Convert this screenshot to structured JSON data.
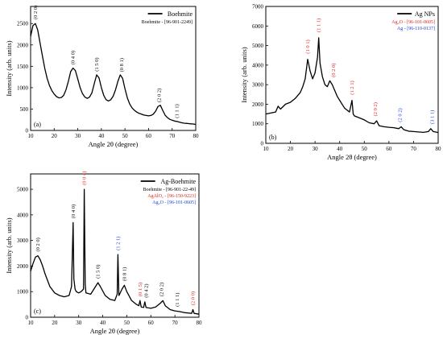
{
  "chart_data": [
    {
      "type": "line",
      "panel_label": "(a)",
      "xlabel": "Angle 2θ (degree)",
      "ylabel": "Intensity (arb. units)",
      "xlim": [
        10,
        80
      ],
      "ylim": [
        0,
        2900
      ],
      "xticks": [
        10,
        20,
        30,
        40,
        50,
        60,
        70,
        80
      ],
      "yticks": [
        0,
        500,
        1000,
        1500,
        2000,
        2500
      ],
      "legend_position": "top-right",
      "series": [
        {
          "name": "Boehmite",
          "color": "#000000",
          "x": [
            10,
            11,
            12,
            13,
            14,
            15,
            16,
            17,
            18,
            19,
            20,
            21,
            22,
            23,
            24,
            25,
            26,
            27,
            28,
            29,
            30,
            31,
            32,
            33,
            34,
            35,
            36,
            37,
            38,
            39,
            40,
            41,
            42,
            43,
            44,
            45,
            46,
            47,
            48,
            49,
            50,
            51,
            52,
            53,
            54,
            55,
            56,
            57,
            58,
            59,
            60,
            61,
            62,
            63,
            64,
            65,
            66,
            67,
            68,
            69,
            70,
            71,
            72,
            73,
            74,
            75,
            76,
            77,
            78,
            79,
            80
          ],
          "y": [
            2200,
            2450,
            2500,
            2350,
            2050,
            1750,
            1450,
            1220,
            1050,
            930,
            850,
            790,
            760,
            770,
            820,
            950,
            1150,
            1380,
            1460,
            1400,
            1200,
            1000,
            860,
            780,
            750,
            780,
            880,
            1100,
            1300,
            1230,
            1000,
            820,
            720,
            690,
            720,
            800,
            950,
            1150,
            1300,
            1220,
            980,
            760,
            620,
            530,
            470,
            430,
            400,
            380,
            360,
            350,
            340,
            350,
            380,
            450,
            560,
            590,
            470,
            360,
            300,
            260,
            240,
            220,
            210,
            195,
            180,
            170,
            165,
            160,
            155,
            150,
            140
          ]
        }
      ],
      "reference_entries": [
        {
          "text": "Boehmite - [96-901-2249]",
          "color": "#000000"
        }
      ],
      "peak_annotations": [
        {
          "text": "(0 2 0)",
          "x": 12,
          "y": 2560,
          "color": "#000000"
        },
        {
          "text": "(0 4 0)",
          "x": 28,
          "y": 1500,
          "color": "#000000"
        },
        {
          "text": "(1 5 0)",
          "x": 38,
          "y": 1340,
          "color": "#000000"
        },
        {
          "text": "(0 8 1)",
          "x": 48.5,
          "y": 1330,
          "color": "#000000"
        },
        {
          "text": "(2 0 2)",
          "x": 64.5,
          "y": 620,
          "color": "#000000"
        },
        {
          "text": "(1 1 1)",
          "x": 72,
          "y": 250,
          "color": "#000000"
        }
      ]
    },
    {
      "type": "line",
      "panel_label": "(b)",
      "xlabel": "Angle 2θ (degree)",
      "ylabel": "Intensity (arb. units)",
      "xlim": [
        10,
        80
      ],
      "ylim": [
        0,
        7000
      ],
      "xticks": [
        10,
        20,
        30,
        40,
        50,
        60,
        70,
        80
      ],
      "yticks": [
        0,
        1000,
        2000,
        3000,
        4000,
        5000,
        6000,
        7000
      ],
      "legend_position": "top-right",
      "series": [
        {
          "name": "Ag NPs",
          "color": "#000000",
          "x": [
            10,
            12,
            14,
            15,
            16,
            18,
            20,
            22,
            24,
            25,
            26,
            27,
            28,
            29,
            30,
            31,
            31.5,
            32,
            33,
            34,
            35,
            36,
            37,
            38,
            39,
            40,
            42,
            44,
            45,
            45.5,
            46,
            48,
            50,
            52,
            54,
            55,
            56,
            58,
            60,
            62,
            64,
            65,
            66,
            68,
            70,
            72,
            74,
            76,
            77,
            78,
            80
          ],
          "y": [
            1500,
            1550,
            1600,
            1900,
            1750,
            2000,
            2100,
            2300,
            2600,
            2900,
            3300,
            4300,
            3700,
            3300,
            3600,
            4400,
            5400,
            4100,
            3400,
            3000,
            2900,
            3200,
            3000,
            2700,
            2400,
            2200,
            1800,
            1600,
            2200,
            1500,
            1400,
            1300,
            1200,
            1050,
            1000,
            1150,
            900,
            850,
            820,
            800,
            750,
            850,
            700,
            620,
            600,
            580,
            560,
            600,
            750,
            600,
            550
          ]
        }
      ],
      "reference_entries": [
        {
          "text": "Ag₂O - [96-101-0605]",
          "color": "#e0201a"
        },
        {
          "text": "Ag - [96-110-0137]",
          "color": "#1a3fe0"
        }
      ],
      "peak_annotations": [
        {
          "text": "(1 0 1)",
          "x": 27,
          "y": 4500,
          "color": "#e0201a"
        },
        {
          "text": "(1 1 1)",
          "x": 31.5,
          "y": 5600,
          "color": "#e0201a"
        },
        {
          "text": "(0 2 0)",
          "x": 37.5,
          "y": 3300,
          "color": "#e0201a"
        },
        {
          "text": "(1 2 1)",
          "x": 45,
          "y": 2400,
          "color": "#e0201a"
        },
        {
          "text": "(2 0 2)",
          "x": 54.5,
          "y": 1300,
          "color": "#e0201a"
        },
        {
          "text": "(2 0 2)",
          "x": 64.5,
          "y": 1000,
          "color": "#1a3fe0"
        },
        {
          "text": "(3 1 1)",
          "x": 77.5,
          "y": 900,
          "color": "#1a3fe0"
        }
      ]
    },
    {
      "type": "line",
      "panel_label": "(c)",
      "xlabel": "Angle 2θ (degree)",
      "ylabel": "Intensity (arb. units)",
      "xlim": [
        10,
        80
      ],
      "ylim": [
        0,
        5600
      ],
      "xticks": [
        10,
        20,
        30,
        40,
        50,
        60,
        70,
        80
      ],
      "yticks": [
        0,
        1000,
        2000,
        3000,
        4000,
        5000
      ],
      "legend_position": "top-right",
      "series": [
        {
          "name": "Ag-Boehmite",
          "color": "#000000",
          "x": [
            10,
            11,
            12,
            13,
            14,
            15,
            16,
            18,
            20,
            22,
            24,
            26,
            27,
            27.7,
            28,
            28.5,
            29,
            30,
            31,
            32,
            32.3,
            32.7,
            33,
            35,
            37,
            38,
            39,
            41,
            43,
            45,
            46,
            46.3,
            46.7,
            47,
            48,
            49,
            50,
            52,
            54,
            55,
            55.5,
            56,
            57,
            57.5,
            58,
            60,
            62,
            64,
            65,
            66,
            68,
            70,
            72,
            74,
            76,
            77,
            77.5,
            78,
            80
          ],
          "y": [
            1800,
            2100,
            2350,
            2400,
            2250,
            2000,
            1700,
            1200,
            950,
            850,
            800,
            850,
            1200,
            3700,
            1500,
            1100,
            1000,
            950,
            1000,
            1100,
            5000,
            1300,
            950,
            900,
            1200,
            1350,
            1200,
            850,
            700,
            650,
            900,
            2450,
            850,
            900,
            1100,
            1250,
            1000,
            650,
            500,
            450,
            650,
            400,
            380,
            600,
            380,
            350,
            400,
            550,
            650,
            450,
            300,
            250,
            220,
            180,
            160,
            150,
            300,
            150,
            120
          ]
        }
      ],
      "reference_entries": [
        {
          "text": "Boehmite - [96-901-22-49]",
          "color": "#000000"
        },
        {
          "text": "AgAlO₂ - [96-150-9223]",
          "color": "#e0201a"
        },
        {
          "text": "Ag₂O - [96-101-0605]",
          "color": "#1a3fe0"
        }
      ],
      "peak_annotations": [
        {
          "text": "(0 2 0)",
          "x": 13,
          "y": 2500,
          "color": "#000000"
        },
        {
          "text": "(0 4 0)",
          "x": 27.7,
          "y": 3800,
          "color": "#000000"
        },
        {
          "text": "(0 0 4)",
          "x": 32.3,
          "y": 5100,
          "color": "#e0201a"
        },
        {
          "text": "(1 5 0)",
          "x": 38,
          "y": 1450,
          "color": "#000000"
        },
        {
          "text": "(1 2 1)",
          "x": 46.3,
          "y": 2550,
          "color": "#1a3fe0"
        },
        {
          "text": "(0 8 1)",
          "x": 49,
          "y": 1350,
          "color": "#000000"
        },
        {
          "text": "(0 1 5)",
          "x": 55.5,
          "y": 750,
          "color": "#e0201a"
        },
        {
          "text": "(0 4 2)",
          "x": 58,
          "y": 700,
          "color": "#000000"
        },
        {
          "text": "(2 0 2)",
          "x": 64.5,
          "y": 750,
          "color": "#000000"
        },
        {
          "text": "(1 1 1)",
          "x": 71,
          "y": 350,
          "color": "#000000"
        },
        {
          "text": "(2 0 0)",
          "x": 77.5,
          "y": 400,
          "color": "#e0201a"
        }
      ]
    }
  ]
}
